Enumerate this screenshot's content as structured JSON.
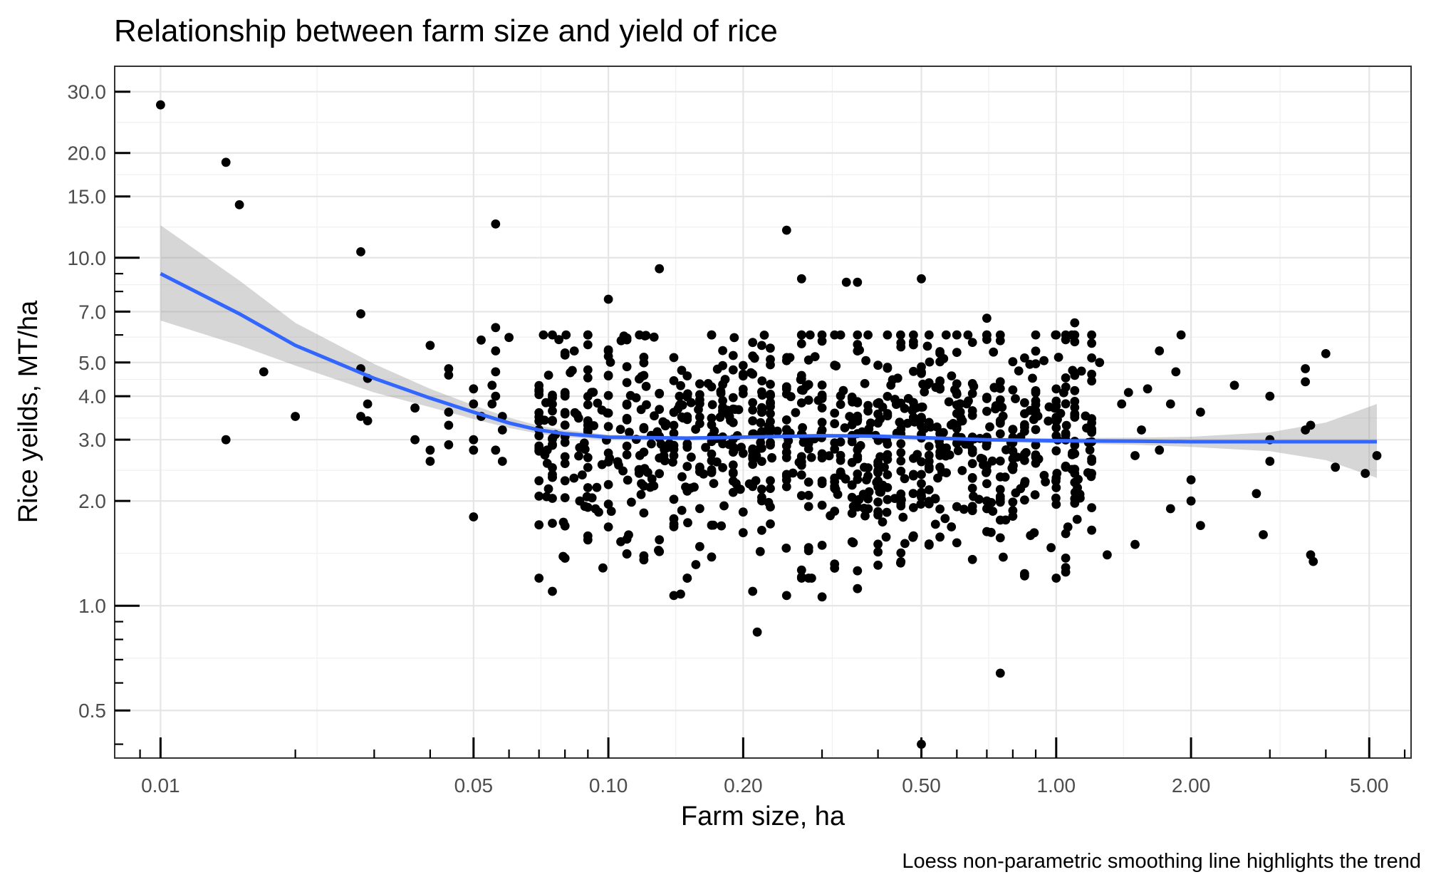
{
  "chart_data": {
    "type": "scatter",
    "title": "Relationship between farm size and yield of rice",
    "xlabel": "Farm size, ha",
    "ylabel": "Rice yeilds, MT/ha",
    "caption": "Loess non-parametric smoothing line highlights the trend",
    "x_scale": "log10",
    "y_scale": "log10",
    "xlim": [
      0.0079,
      6.2
    ],
    "ylim": [
      0.365,
      35.5
    ],
    "x_ticks": [
      0.01,
      0.05,
      0.1,
      0.2,
      0.5,
      1,
      2,
      5
    ],
    "x_tick_labels": [
      "0.01",
      "0.05",
      "0.10",
      "0.20",
      "0.50",
      "1.00",
      "2.00",
      "5.00"
    ],
    "y_ticks": [
      0.5,
      1,
      2,
      3,
      4,
      5,
      7,
      10,
      15,
      20,
      30
    ],
    "y_tick_labels": [
      "0.5",
      "1.0",
      "2.0",
      "3.0",
      "4.0",
      "5.0",
      "7.0",
      "10.0",
      "15.0",
      "20.0",
      "30.0"
    ],
    "grid": true,
    "legend": "none",
    "colors": {
      "points": "#000000",
      "smooth": "#3366ff",
      "ribbon": "#999999",
      "grid": "#e5e5e5"
    },
    "series": [
      {
        "kind": "points",
        "points": [
          [
            0.01,
            27.5
          ],
          [
            0.014,
            18.8
          ],
          [
            0.015,
            14.2
          ],
          [
            0.014,
            3.0
          ],
          [
            0.017,
            4.7
          ],
          [
            0.02,
            3.5
          ],
          [
            0.028,
            10.4
          ],
          [
            0.028,
            6.9
          ],
          [
            0.028,
            4.8
          ],
          [
            0.029,
            4.5
          ],
          [
            0.029,
            3.8
          ],
          [
            0.028,
            3.5
          ],
          [
            0.029,
            3.4
          ],
          [
            0.04,
            5.6
          ],
          [
            0.04,
            2.8
          ],
          [
            0.04,
            2.6
          ],
          [
            0.044,
            4.8
          ],
          [
            0.044,
            4.6
          ],
          [
            0.044,
            3.6
          ],
          [
            0.044,
            3.3
          ],
          [
            0.044,
            2.9
          ],
          [
            0.037,
            3.7
          ],
          [
            0.037,
            3.0
          ],
          [
            0.05,
            1.8
          ],
          [
            0.05,
            2.8
          ],
          [
            0.05,
            3.0
          ],
          [
            0.05,
            3.8
          ],
          [
            0.05,
            4.2
          ],
          [
            0.052,
            5.8
          ],
          [
            0.052,
            3.5
          ],
          [
            0.055,
            4.3
          ],
          [
            0.055,
            3.8
          ],
          [
            0.056,
            12.5
          ],
          [
            0.056,
            6.3
          ],
          [
            0.056,
            5.4
          ],
          [
            0.056,
            4.7
          ],
          [
            0.056,
            4.0
          ],
          [
            0.056,
            2.8
          ],
          [
            0.06,
            5.9
          ],
          [
            0.058,
            3.5
          ],
          [
            0.058,
            3.2
          ],
          [
            0.058,
            2.6
          ]
        ],
        "random_cloud": {
          "count": 1000,
          "x_range": [
            0.07,
            1.2
          ],
          "y_center": 3.0,
          "y_log_sd": 0.16,
          "y_range": [
            1.2,
            6.0
          ]
        },
        "extra_points": [
          [
            0.075,
            1.1
          ],
          [
            0.1,
            7.6
          ],
          [
            0.13,
            9.3
          ],
          [
            0.14,
            1.07
          ],
          [
            0.145,
            1.08
          ],
          [
            0.21,
            1.1
          ],
          [
            0.215,
            0.84
          ],
          [
            0.25,
            12.0
          ],
          [
            0.25,
            1.07
          ],
          [
            0.27,
            8.7
          ],
          [
            0.3,
            1.06
          ],
          [
            0.34,
            8.5
          ],
          [
            0.36,
            8.5
          ],
          [
            0.36,
            1.12
          ],
          [
            0.5,
            8.7
          ],
          [
            0.5,
            0.4
          ],
          [
            0.75,
            0.64
          ],
          [
            0.7,
            6.7
          ],
          [
            1.0,
            6.0
          ],
          [
            1.0,
            1.2
          ],
          [
            1.1,
            6.5
          ],
          [
            1.25,
            5.0
          ],
          [
            1.3,
            1.4
          ],
          [
            1.45,
            4.1
          ],
          [
            1.5,
            1.5
          ],
          [
            1.6,
            4.2
          ],
          [
            1.7,
            5.4
          ],
          [
            1.8,
            3.8
          ],
          [
            1.8,
            1.9
          ],
          [
            1.85,
            4.7
          ],
          [
            1.9,
            6.0
          ],
          [
            2.1,
            1.7
          ],
          [
            2.1,
            3.6
          ],
          [
            2.0,
            2.3
          ],
          [
            2.0,
            2.0
          ],
          [
            2.5,
            4.3
          ],
          [
            2.8,
            2.1
          ],
          [
            2.9,
            1.6
          ],
          [
            3.0,
            4.0
          ],
          [
            3.0,
            3.0
          ],
          [
            3.0,
            2.6
          ],
          [
            3.6,
            4.8
          ],
          [
            3.6,
            4.4
          ],
          [
            3.7,
            3.3
          ],
          [
            3.6,
            3.2
          ],
          [
            3.7,
            1.4
          ],
          [
            3.75,
            1.34
          ],
          [
            4.0,
            5.3
          ],
          [
            4.2,
            2.5
          ],
          [
            4.9,
            2.4
          ],
          [
            5.2,
            2.7
          ],
          [
            1.4,
            3.8
          ],
          [
            1.7,
            2.8
          ],
          [
            1.5,
            2.7
          ],
          [
            1.55,
            3.2
          ],
          [
            1.05,
            2.5
          ],
          [
            1.1,
            2.4
          ],
          [
            1.2,
            2.6
          ]
        ]
      },
      {
        "kind": "smooth",
        "method": "loess",
        "x": [
          0.01,
          0.015,
          0.02,
          0.03,
          0.04,
          0.05,
          0.06,
          0.07,
          0.08,
          0.1,
          0.15,
          0.2,
          0.3,
          0.4,
          0.5,
          0.7,
          1.0,
          1.5,
          2.0,
          3.0,
          4.0,
          5.2
        ],
        "y": [
          9.0,
          6.9,
          5.6,
          4.5,
          3.95,
          3.6,
          3.35,
          3.2,
          3.12,
          3.05,
          3.03,
          3.05,
          3.08,
          3.07,
          3.04,
          3.0,
          2.98,
          2.97,
          2.96,
          2.96,
          2.96,
          2.96
        ],
        "lower": [
          6.6,
          5.6,
          4.9,
          4.1,
          3.72,
          3.44,
          3.24,
          3.12,
          3.05,
          3.0,
          2.99,
          3.01,
          3.04,
          3.03,
          3.0,
          2.96,
          2.93,
          2.9,
          2.86,
          2.78,
          2.62,
          2.33
        ],
        "upper": [
          12.4,
          8.6,
          6.5,
          4.95,
          4.2,
          3.77,
          3.47,
          3.29,
          3.2,
          3.1,
          3.07,
          3.09,
          3.12,
          3.11,
          3.08,
          3.04,
          3.03,
          3.04,
          3.06,
          3.15,
          3.36,
          3.8
        ]
      }
    ]
  }
}
